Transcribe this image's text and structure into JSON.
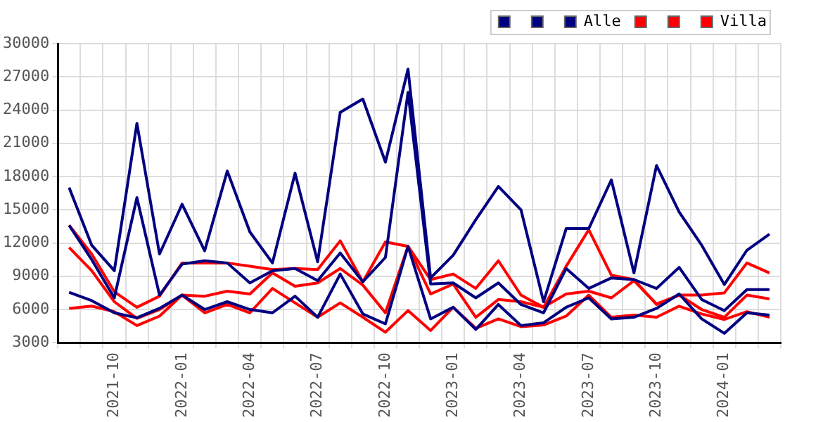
{
  "chart_data": {
    "type": "line",
    "categories": [
      null,
      null,
      "2021-10",
      null,
      null,
      "2022-01",
      null,
      null,
      "2022-04",
      null,
      null,
      "2022-07",
      null,
      null,
      "2022-10",
      null,
      null,
      "2023-01",
      null,
      null,
      "2023-04",
      null,
      null,
      "2023-07",
      null,
      null,
      "2023-10",
      null,
      null,
      "2024-01",
      null,
      null
    ],
    "series": [
      {
        "color": "#000080",
        "values": [
          17000,
          11800,
          9500,
          22800,
          11000,
          15500,
          11300,
          18500,
          13000,
          10200,
          18300,
          10300,
          23800,
          25000,
          19300,
          27700,
          8850,
          10900,
          14100,
          17100,
          15000,
          6700,
          13300,
          13300,
          17700,
          9300,
          19000,
          14800,
          11800,
          8250,
          11350,
          12800
        ]
      },
      {
        "color": "#000080",
        "values": [
          13600,
          10500,
          7050,
          16100,
          7300,
          10100,
          10400,
          10200,
          8400,
          9500,
          9700,
          8600,
          11100,
          8500,
          10700,
          25600,
          8300,
          8400,
          7050,
          8400,
          6450,
          5700,
          9700,
          7900,
          8850,
          8700,
          7900,
          9800,
          6900,
          5900,
          7800,
          7800
        ]
      },
      {
        "name": "Alle",
        "color": "#000080",
        "values": [
          7550,
          6800,
          5700,
          5250,
          6100,
          7300,
          6000,
          6700,
          6000,
          5700,
          7200,
          5300,
          9200,
          5600,
          4700,
          11700,
          5150,
          6200,
          4200,
          6450,
          4550,
          4800,
          6200,
          7050,
          5150,
          5300,
          6100,
          7400,
          5150,
          3850,
          5700,
          5500
        ]
      },
      {
        "color": "#ff0000",
        "values": [
          13600,
          11000,
          7600,
          6200,
          7200,
          10200,
          10200,
          10200,
          9900,
          9600,
          9700,
          9600,
          12200,
          8500,
          12100,
          11700,
          8700,
          9200,
          7900,
          10400,
          7300,
          6200,
          9900,
          13200,
          9100,
          8700,
          6450,
          7300,
          7300,
          7500,
          10200,
          9300
        ]
      },
      {
        "color": "#ff0000",
        "values": [
          11600,
          9500,
          6700,
          5200,
          6000,
          7300,
          7200,
          7650,
          7400,
          9300,
          8100,
          8400,
          9700,
          8200,
          5700,
          11700,
          7400,
          8300,
          5300,
          6900,
          6700,
          6200,
          7400,
          7650,
          7050,
          8600,
          6500,
          7300,
          6000,
          5300,
          7300,
          6950
        ]
      },
      {
        "name": "Villa",
        "color": "#ff0000",
        "values": [
          6100,
          6300,
          5800,
          4550,
          5400,
          7300,
          5700,
          6450,
          5700,
          7900,
          6600,
          5300,
          6600,
          5300,
          3950,
          5900,
          4100,
          6200,
          4300,
          5150,
          4450,
          4600,
          5400,
          7300,
          5300,
          5500,
          5300,
          6300,
          5600,
          5100,
          5800,
          5300
        ]
      }
    ],
    "ylim": [
      3000,
      30000
    ],
    "yticks": [
      3000,
      6000,
      9000,
      12000,
      15000,
      18000,
      21000,
      24000,
      27000,
      30000
    ],
    "grid": true,
    "legend": "top right",
    "marker": "none",
    "line_style": "solid"
  }
}
